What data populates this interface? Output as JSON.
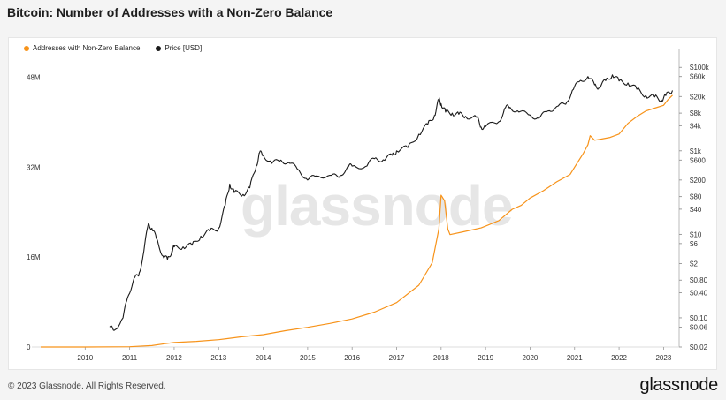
{
  "title": "Bitcoin: Number of Addresses with a Non-Zero Balance",
  "footer": {
    "copyright": "© 2023 Glassnode. All Rights Reserved.",
    "brand": "glassnode"
  },
  "watermark": "glassnode",
  "chart_data": {
    "type": "line",
    "title": "Bitcoin: Number of Addresses with a Non-Zero Balance",
    "xlabel": "",
    "ylabel": "",
    "x_ticks": [
      "2010",
      "2011",
      "2012",
      "2013",
      "2014",
      "2015",
      "2016",
      "2017",
      "2018",
      "2019",
      "2020",
      "2021",
      "2022",
      "2023"
    ],
    "y_left_ticks": [
      "0",
      "16M",
      "32M",
      "48M"
    ],
    "y_left_values": [
      0,
      16000000,
      32000000,
      48000000
    ],
    "y_right_ticks": [
      "$100k",
      "$60k",
      "$20k",
      "$8k",
      "$4k",
      "$1k",
      "$600",
      "$200",
      "$80",
      "$40",
      "$10",
      "$6",
      "$2",
      "$0.80",
      "$0.40",
      "$0.10",
      "$0.06",
      "$0.02"
    ],
    "y_right_values": [
      100000,
      60000,
      20000,
      8000,
      4000,
      1000,
      600,
      200,
      80,
      40,
      10,
      6,
      2,
      0.8,
      0.4,
      0.1,
      0.06,
      0.02
    ],
    "ylim_left": [
      0,
      52000000
    ],
    "ylim_right_log": [
      0.02,
      200000
    ],
    "grid": true,
    "legend_position": "top-left",
    "series": [
      {
        "name": "Addresses with Non-Zero Balance",
        "color": "#f7931a",
        "axis": "left",
        "points": [
          [
            2009.0,
            0
          ],
          [
            2010.0,
            5000
          ],
          [
            2011.0,
            50000
          ],
          [
            2011.5,
            250000
          ],
          [
            2011.8,
            600000
          ],
          [
            2012.0,
            800000
          ],
          [
            2012.5,
            1000000
          ],
          [
            2013.0,
            1300000
          ],
          [
            2013.5,
            1800000
          ],
          [
            2014.0,
            2200000
          ],
          [
            2014.5,
            2900000
          ],
          [
            2015.0,
            3500000
          ],
          [
            2015.5,
            4200000
          ],
          [
            2016.0,
            5000000
          ],
          [
            2016.5,
            6200000
          ],
          [
            2017.0,
            7900000
          ],
          [
            2017.5,
            11000000
          ],
          [
            2017.8,
            15000000
          ],
          [
            2017.95,
            21000000
          ],
          [
            2018.0,
            27000000
          ],
          [
            2018.08,
            26000000
          ],
          [
            2018.15,
            21000000
          ],
          [
            2018.2,
            20000000
          ],
          [
            2018.5,
            20500000
          ],
          [
            2018.9,
            21200000
          ],
          [
            2019.0,
            21500000
          ],
          [
            2019.3,
            22500000
          ],
          [
            2019.6,
            24500000
          ],
          [
            2019.8,
            25200000
          ],
          [
            2020.0,
            26500000
          ],
          [
            2020.3,
            27800000
          ],
          [
            2020.6,
            29400000
          ],
          [
            2020.9,
            30700000
          ],
          [
            2021.0,
            32000000
          ],
          [
            2021.2,
            34500000
          ],
          [
            2021.3,
            36000000
          ],
          [
            2021.35,
            37600000
          ],
          [
            2021.45,
            36800000
          ],
          [
            2021.6,
            37000000
          ],
          [
            2021.8,
            37300000
          ],
          [
            2022.0,
            37900000
          ],
          [
            2022.2,
            39800000
          ],
          [
            2022.4,
            41000000
          ],
          [
            2022.6,
            42000000
          ],
          [
            2022.8,
            42500000
          ],
          [
            2023.0,
            43000000
          ],
          [
            2023.1,
            44000000
          ],
          [
            2023.2,
            44800000
          ]
        ]
      },
      {
        "name": "Price [USD]",
        "color": "#1a1a1a",
        "axis": "right",
        "points": [
          [
            2010.55,
            0.06
          ],
          [
            2010.65,
            0.05
          ],
          [
            2010.85,
            0.1
          ],
          [
            2010.95,
            0.3
          ],
          [
            2011.1,
            0.9
          ],
          [
            2011.2,
            1.0
          ],
          [
            2011.3,
            3
          ],
          [
            2011.42,
            18
          ],
          [
            2011.5,
            14
          ],
          [
            2011.6,
            8
          ],
          [
            2011.75,
            3
          ],
          [
            2011.85,
            2.5
          ],
          [
            2011.95,
            4
          ],
          [
            2012.0,
            5
          ],
          [
            2012.2,
            5
          ],
          [
            2012.4,
            5.5
          ],
          [
            2012.6,
            9
          ],
          [
            2012.8,
            12
          ],
          [
            2013.0,
            14
          ],
          [
            2013.15,
            50
          ],
          [
            2013.25,
            160
          ],
          [
            2013.35,
            100
          ],
          [
            2013.55,
            90
          ],
          [
            2013.7,
            130
          ],
          [
            2013.85,
            450
          ],
          [
            2013.92,
            900
          ],
          [
            2014.0,
            800
          ],
          [
            2014.2,
            500
          ],
          [
            2014.4,
            600
          ],
          [
            2014.6,
            500
          ],
          [
            2014.8,
            350
          ],
          [
            2015.0,
            200
          ],
          [
            2015.2,
            250
          ],
          [
            2015.5,
            260
          ],
          [
            2015.7,
            230
          ],
          [
            2015.9,
            420
          ],
          [
            2016.0,
            430
          ],
          [
            2016.3,
            420
          ],
          [
            2016.5,
            650
          ],
          [
            2016.7,
            610
          ],
          [
            2016.9,
            780
          ],
          [
            2017.0,
            1000
          ],
          [
            2017.25,
            1200
          ],
          [
            2017.5,
            2500
          ],
          [
            2017.7,
            4300
          ],
          [
            2017.85,
            7000
          ],
          [
            2017.95,
            17000
          ],
          [
            2018.0,
            13500
          ],
          [
            2018.1,
            8500
          ],
          [
            2018.25,
            8000
          ],
          [
            2018.4,
            7500
          ],
          [
            2018.55,
            6700
          ],
          [
            2018.8,
            6300
          ],
          [
            2018.9,
            3700
          ],
          [
            2019.0,
            3800
          ],
          [
            2019.3,
            5000
          ],
          [
            2019.45,
            11000
          ],
          [
            2019.55,
            11000
          ],
          [
            2019.75,
            8500
          ],
          [
            2020.0,
            7200
          ],
          [
            2020.2,
            6000
          ],
          [
            2020.4,
            9000
          ],
          [
            2020.6,
            11500
          ],
          [
            2020.8,
            13000
          ],
          [
            2020.95,
            28000
          ],
          [
            2021.1,
            45000
          ],
          [
            2021.3,
            60000
          ],
          [
            2021.45,
            38000
          ],
          [
            2021.55,
            33000
          ],
          [
            2021.7,
            48000
          ],
          [
            2021.85,
            66000
          ],
          [
            2022.0,
            47000
          ],
          [
            2022.2,
            42000
          ],
          [
            2022.4,
            30000
          ],
          [
            2022.6,
            21000
          ],
          [
            2022.8,
            19500
          ],
          [
            2022.95,
            16500
          ],
          [
            2023.05,
            21000
          ],
          [
            2023.2,
            28000
          ]
        ]
      }
    ]
  }
}
